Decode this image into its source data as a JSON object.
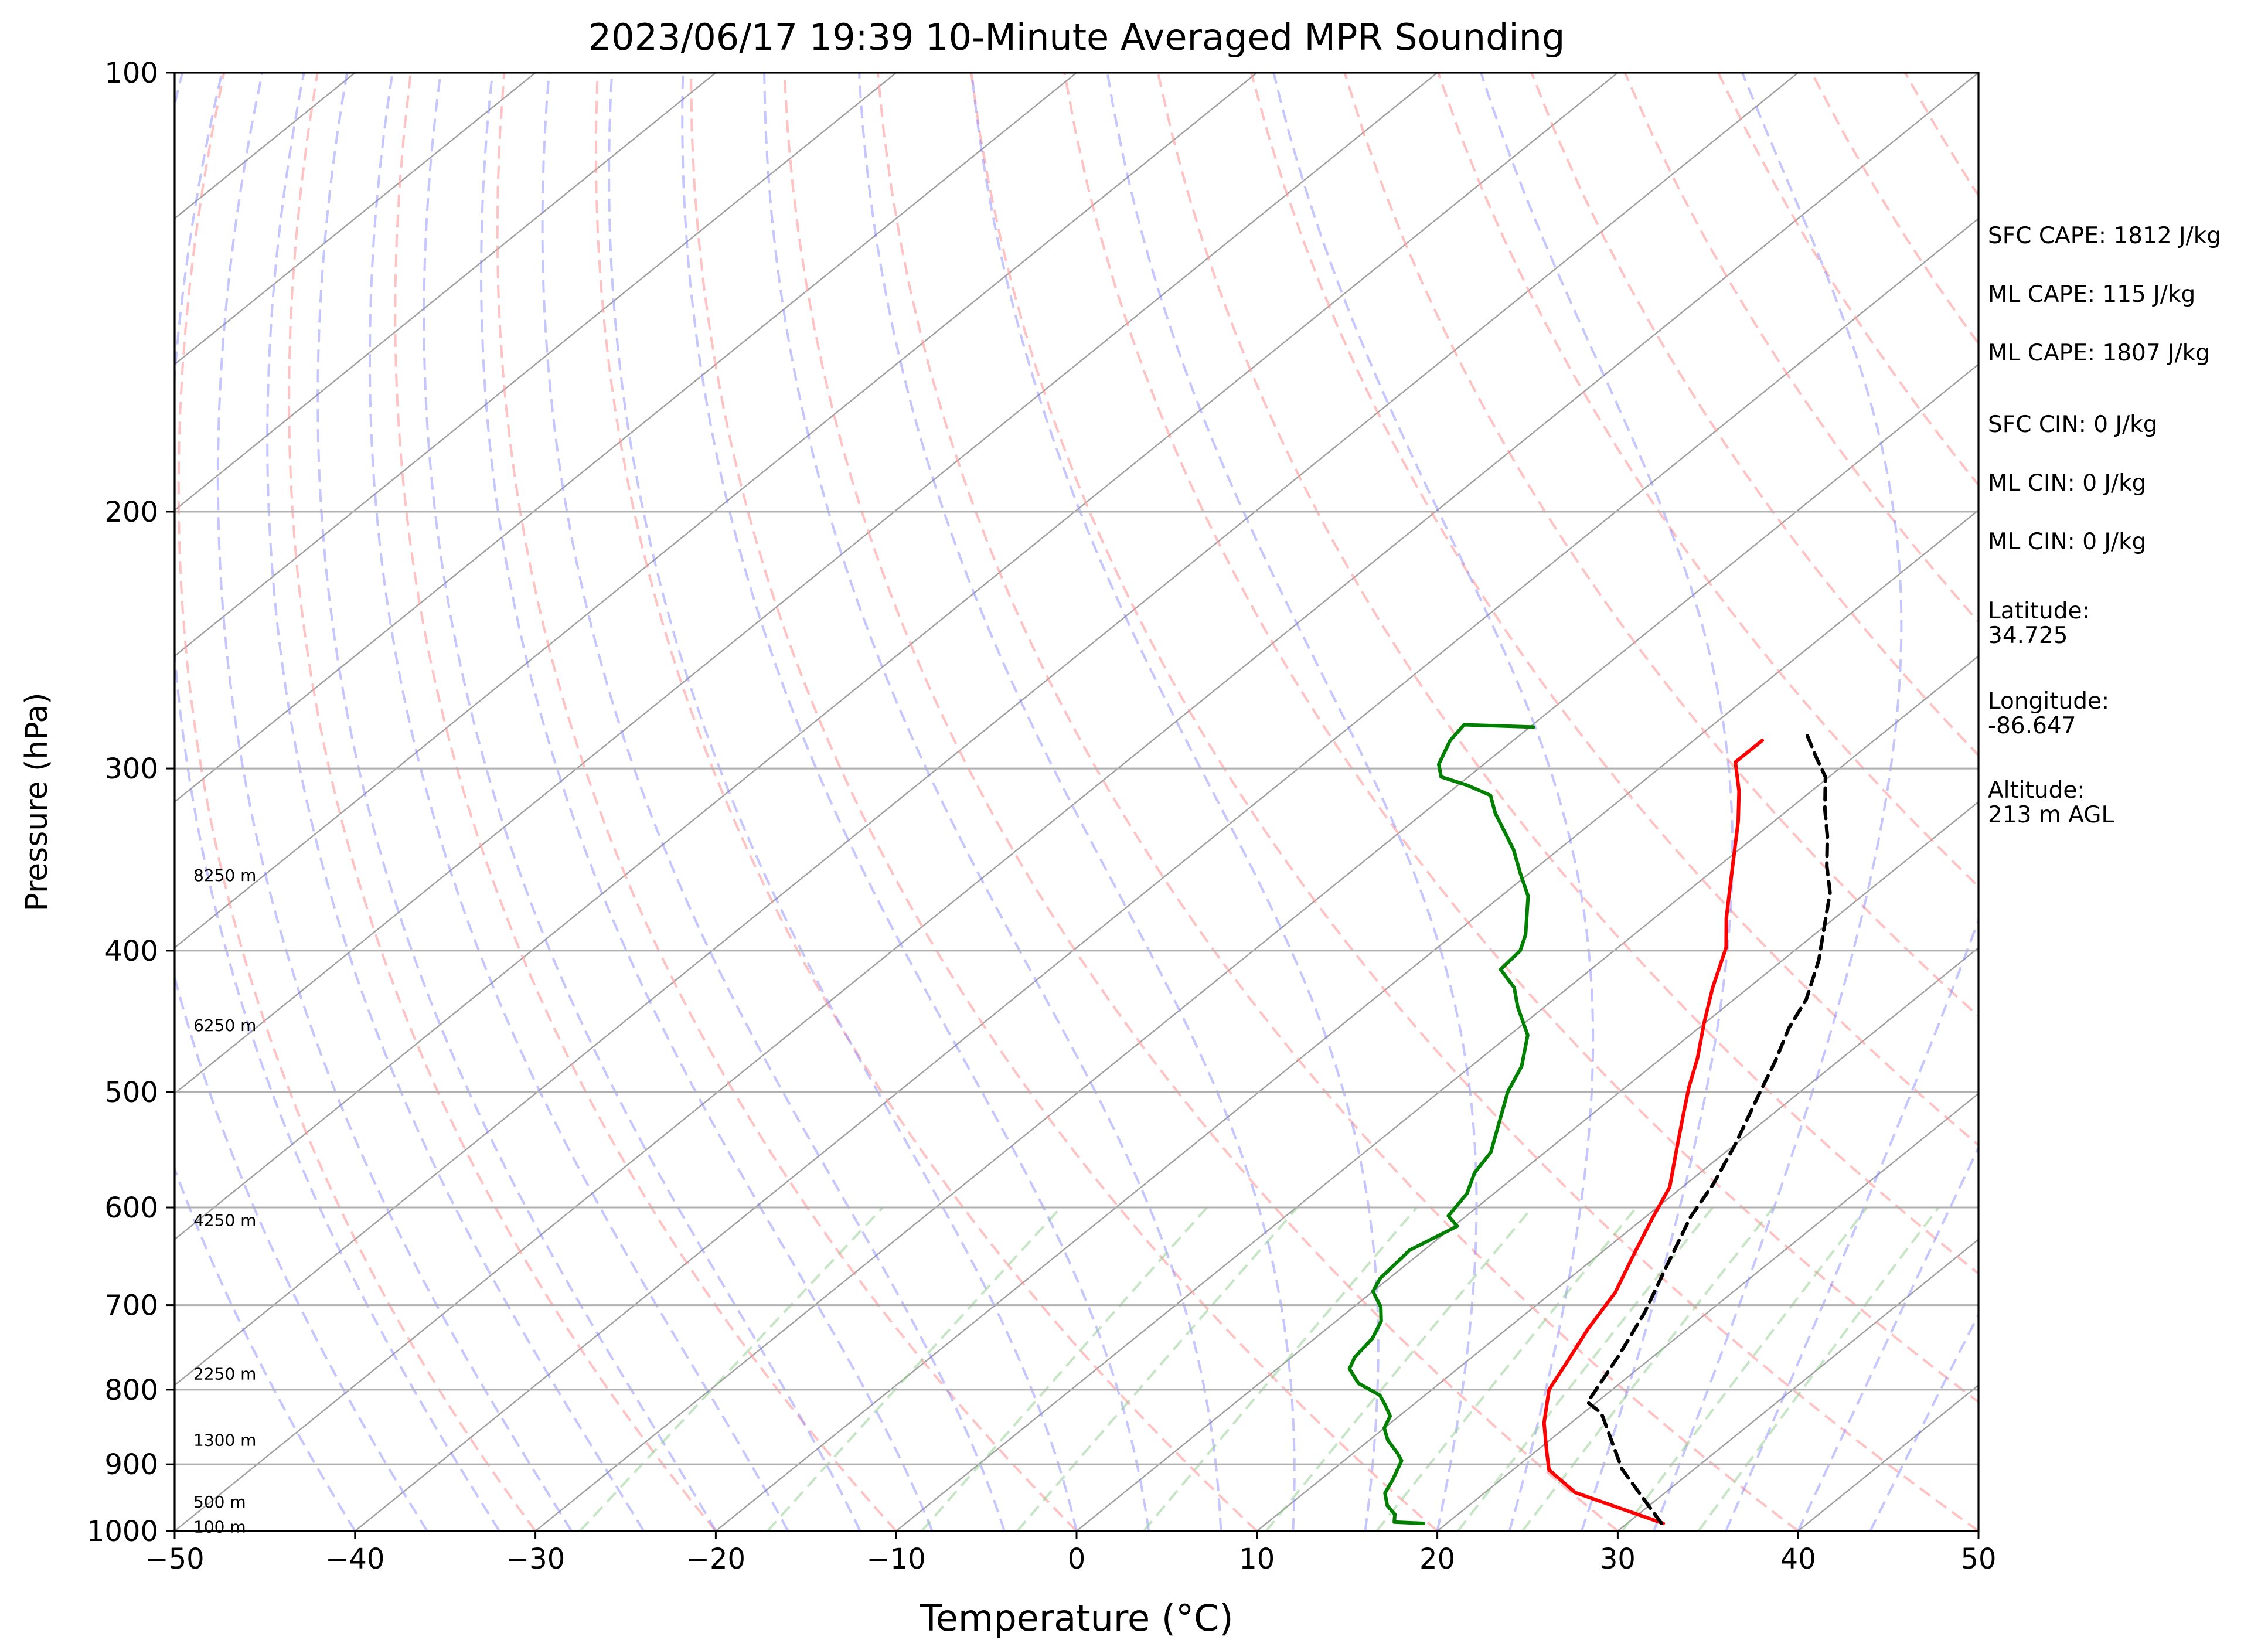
{
  "chart_data": {
    "type": "line",
    "subtype": "skew-T log-P diagram",
    "title": "2023/06/17 19:39 10-Minute Averaged MPR Sounding",
    "xlabel": "Temperature (°C)",
    "ylabel": "Pressure (hPa)",
    "xlim": [
      -50,
      50
    ],
    "ylim": [
      1000,
      100
    ],
    "yscale": "log",
    "grid": "isobars",
    "x_ticks": [
      "−50",
      "−40",
      "−30",
      "−20",
      "−10",
      "0",
      "10",
      "20",
      "30",
      "40",
      "50"
    ],
    "x_tick_values": [
      -50,
      -40,
      -30,
      -20,
      -10,
      0,
      10,
      20,
      30,
      40,
      50
    ],
    "y_ticks": [
      "100",
      "200",
      "300",
      "400",
      "500",
      "600",
      "700",
      "800",
      "900",
      "1000"
    ],
    "y_tick_values": [
      100,
      200,
      300,
      400,
      500,
      600,
      700,
      800,
      900,
      1000
    ],
    "height_labels": [
      {
        "pressure": 355,
        "text": "8250 m"
      },
      {
        "pressure": 450,
        "text": "6250 m"
      },
      {
        "pressure": 612,
        "text": "4250 m"
      },
      {
        "pressure": 780,
        "text": "2250 m"
      },
      {
        "pressure": 866,
        "text": "1300 m"
      },
      {
        "pressure": 955,
        "text": "500 m"
      },
      {
        "pressure": 993,
        "text": "100 m"
      }
    ],
    "series": [
      {
        "name": "",
        "color": "#ff0000",
        "style": "solid",
        "points": [
          [
            32,
            988
          ],
          [
            25,
            941
          ],
          [
            22,
            908
          ],
          [
            20.5,
            880
          ],
          [
            18.5,
            843
          ],
          [
            16.5,
            800
          ],
          [
            15.5,
            762
          ],
          [
            14.5,
            727
          ],
          [
            13.5,
            686
          ],
          [
            12,
            648
          ],
          [
            10.5,
            611
          ],
          [
            9.3,
            581
          ],
          [
            7,
            546
          ],
          [
            5,
            517
          ],
          [
            3.5,
            496
          ],
          [
            2,
            474
          ],
          [
            0,
            449
          ],
          [
            -2,
            424
          ],
          [
            -4,
            398
          ],
          [
            -6,
            380
          ],
          [
            -9,
            352
          ],
          [
            -12,
            326
          ],
          [
            -14,
            311
          ],
          [
            -16.2,
            297
          ],
          [
            -16.2,
            287
          ]
        ]
      },
      {
        "name": "",
        "color": "#008000",
        "style": "solid",
        "points": [
          [
            18.7,
            988
          ],
          [
            17,
            986
          ],
          [
            16.5,
            974
          ],
          [
            15.5,
            961
          ],
          [
            14.5,
            942
          ],
          [
            14,
            922
          ],
          [
            13.2,
            895
          ],
          [
            12.5,
            885
          ],
          [
            11,
            866
          ],
          [
            10,
            850
          ],
          [
            9.5,
            834
          ],
          [
            8.5,
            820
          ],
          [
            7.5,
            807
          ],
          [
            5.5,
            792
          ],
          [
            4,
            774
          ],
          [
            3.5,
            760
          ],
          [
            3.2,
            738
          ],
          [
            2.5,
            718
          ],
          [
            1.5,
            702
          ],
          [
            0,
            685
          ],
          [
            -0.5,
            671
          ],
          [
            -0.7,
            650
          ],
          [
            -0.8,
            642
          ],
          [
            0.2,
            618
          ],
          [
            -1,
            608
          ],
          [
            -1.5,
            587
          ],
          [
            -2.5,
            568
          ],
          [
            -3,
            550
          ],
          [
            -4.5,
            526
          ],
          [
            -6.2,
            500
          ],
          [
            -7.2,
            480
          ],
          [
            -9,
            457
          ],
          [
            -11.5,
            437
          ],
          [
            -13,
            424
          ],
          [
            -15,
            412
          ],
          [
            -15.2,
            400
          ],
          [
            -16,
            390
          ],
          [
            -18.5,
            367
          ],
          [
            -20.5,
            354
          ],
          [
            -22.5,
            341
          ],
          [
            -24.5,
            330
          ],
          [
            -26,
            322
          ],
          [
            -27.5,
            313
          ],
          [
            -29.5,
            308
          ],
          [
            -31.5,
            304
          ],
          [
            -32.5,
            298
          ],
          [
            -33.5,
            287
          ],
          [
            -33.8,
            280
          ],
          [
            -29.8,
            281
          ]
        ]
      },
      {
        "name": "",
        "color": "#000000",
        "style": "dashed",
        "points": [
          [
            31.9,
            988
          ],
          [
            26,
            907
          ],
          [
            21,
            830
          ],
          [
            19.5,
            816
          ],
          [
            18,
            757
          ],
          [
            16.5,
            708
          ],
          [
            14.5,
            657
          ],
          [
            12.5,
            609
          ],
          [
            11.5,
            578
          ],
          [
            10,
            543
          ],
          [
            8,
            504
          ],
          [
            6.5,
            476
          ],
          [
            5,
            452
          ],
          [
            4,
            432
          ],
          [
            2,
            406
          ],
          [
            0,
            385
          ],
          [
            -2,
            365
          ],
          [
            -4,
            350
          ],
          [
            -6,
            334
          ],
          [
            -8,
            320
          ],
          [
            -10.2,
            304
          ],
          [
            -12,
            295
          ],
          [
            -14.2,
            284
          ]
        ]
      }
    ],
    "background_lines": {
      "dry_adiabats_color": "#ff9999",
      "moist_adiabats_color": "#8080ff",
      "mixing_ratio_color": "#8ccc8c",
      "isotherms_color": "#a0a0a0"
    },
    "annotations": [
      "SFC CAPE: 1812 J/kg",
      "ML CAPE: 115 J/kg",
      "ML CAPE: 1807 J/kg",
      "SFC CIN: 0 J/kg",
      "ML CIN: 0 J/kg",
      "ML CIN: 0 J/kg",
      "Latitude:\n34.725",
      "Longitude:\n-86.647",
      "Altitude:\n213 m AGL"
    ]
  },
  "info_panel": {
    "sfc_cape": "SFC CAPE: 1812 J/kg",
    "ml_cape_1": "ML CAPE: 115 J/kg",
    "ml_cape_2": "ML CAPE: 1807 J/kg",
    "sfc_cin": "SFC CIN: 0 J/kg",
    "ml_cin_1": "ML CIN: 0 J/kg",
    "ml_cin_2": "ML CIN: 0 J/kg",
    "latitude_label": "Latitude:",
    "latitude_value": "34.725",
    "longitude_label": "Longitude:",
    "longitude_value": "-86.647",
    "altitude_label": "Altitude:",
    "altitude_value": "213 m AGL"
  }
}
